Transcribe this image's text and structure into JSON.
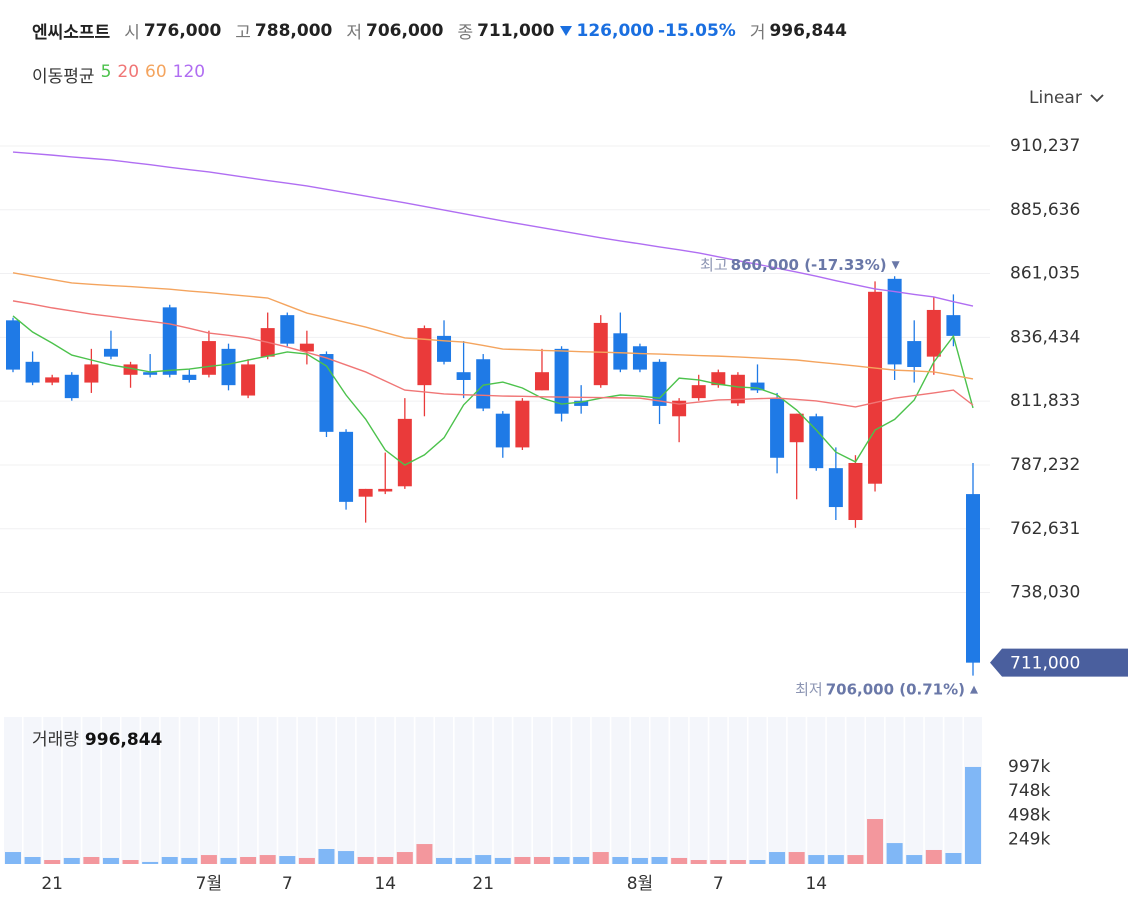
{
  "header": {
    "name": "엔씨소프트",
    "items": [
      {
        "label": "시",
        "value": "776,000"
      },
      {
        "label": "고",
        "value": "788,000"
      },
      {
        "label": "저",
        "value": "706,000"
      },
      {
        "label": "종",
        "value": "711,000"
      }
    ],
    "change": "126,000",
    "change_pct": "-15.05%",
    "volume_label": "거",
    "volume": "996,844"
  },
  "scale_selector": "Linear",
  "chart_data": [
    {
      "type": "candlestick",
      "legend_title": "이동평균",
      "categories": [
        null,
        null,
        "21",
        null,
        null,
        null,
        null,
        null,
        null,
        null,
        "7월",
        null,
        null,
        null,
        "7",
        null,
        null,
        null,
        null,
        "14",
        null,
        null,
        null,
        null,
        "21",
        null,
        null,
        null,
        null,
        null,
        null,
        null,
        "8월",
        null,
        null,
        null,
        "7",
        null,
        null,
        null,
        null,
        "14",
        null,
        null,
        null,
        null,
        null,
        null,
        null,
        null
      ],
      "open": [
        843000,
        827000,
        819000,
        822000,
        819000,
        832000,
        822000,
        823000,
        848000,
        822000,
        822000,
        832000,
        814000,
        829000,
        845000,
        831000,
        830000,
        800000,
        775000,
        777000,
        779000,
        818000,
        837000,
        823000,
        828000,
        807000,
        794000,
        816000,
        832000,
        812000,
        818000,
        838000,
        833000,
        827000,
        806000,
        813000,
        818000,
        811000,
        819000,
        813000,
        796000,
        806000,
        786000,
        766000,
        780000,
        859000,
        835000,
        829000,
        845000,
        776000
      ],
      "high": [
        844000,
        831000,
        822000,
        823000,
        832000,
        839000,
        827000,
        830000,
        849000,
        824000,
        839000,
        834000,
        828000,
        846000,
        846000,
        839000,
        831000,
        801000,
        778000,
        792000,
        813000,
        841000,
        843000,
        835000,
        830000,
        808000,
        813000,
        832000,
        833000,
        818000,
        845000,
        846000,
        834000,
        828000,
        813000,
        822000,
        824000,
        823000,
        826000,
        815000,
        807000,
        807000,
        794000,
        791000,
        858000,
        860000,
        843000,
        852000,
        853000,
        788000
      ],
      "low": [
        823000,
        818000,
        818000,
        812000,
        815000,
        828000,
        817000,
        821000,
        821000,
        819000,
        821000,
        816000,
        813000,
        828000,
        833000,
        826000,
        798000,
        770000,
        765000,
        776000,
        778000,
        806000,
        826000,
        813000,
        808000,
        790000,
        793000,
        816000,
        804000,
        807000,
        817000,
        823000,
        823000,
        803000,
        796000,
        812000,
        817000,
        810000,
        815000,
        784000,
        774000,
        785000,
        766000,
        763000,
        777000,
        820000,
        819000,
        822000,
        833000,
        706000
      ],
      "close": [
        824000,
        819000,
        821000,
        813000,
        826000,
        829000,
        826000,
        822000,
        822000,
        820000,
        835000,
        818000,
        826000,
        840000,
        834000,
        834000,
        800000,
        773000,
        778000,
        778000,
        805000,
        840000,
        827000,
        820000,
        809000,
        794000,
        812000,
        823000,
        807000,
        810000,
        842000,
        824000,
        824000,
        810000,
        812000,
        818000,
        823000,
        822000,
        816000,
        790000,
        807000,
        786000,
        771000,
        788000,
        854000,
        826000,
        825000,
        847000,
        837000,
        711000
      ],
      "up_color": "#ea3a3a",
      "down_color": "#1f7ae6",
      "series": [
        {
          "name": "5",
          "color": "#4cc24c",
          "values": [
            844700,
            838500,
            834200,
            829600,
            827700,
            825800,
            824500,
            823100,
            823700,
            824200,
            825200,
            826100,
            827700,
            829200,
            830800,
            830000,
            825400,
            814200,
            804900,
            793000,
            787200,
            791100,
            797700,
            810400,
            818000,
            819200,
            816900,
            813000,
            810700,
            811500,
            813000,
            814200,
            813800,
            813000,
            820700,
            820000,
            818400,
            817300,
            816900,
            814200,
            808400,
            800700,
            792200,
            788400,
            800700,
            804800,
            812300,
            826900,
            836900,
            809200
          ]
        },
        {
          "name": "20",
          "color": "#f07676",
          "values": [
            850500,
            849200,
            847800,
            846600,
            845400,
            844500,
            843500,
            842600,
            841600,
            839900,
            838100,
            837200,
            836200,
            834500,
            832700,
            830600,
            828500,
            825800,
            823100,
            819600,
            816100,
            815400,
            814600,
            814300,
            814100,
            813800,
            813700,
            813500,
            813400,
            813300,
            813200,
            813100,
            813000,
            811900,
            810700,
            811500,
            812300,
            812500,
            812800,
            813000,
            812500,
            811900,
            810800,
            809600,
            811300,
            813000,
            814000,
            815000,
            816100,
            810300
          ]
        },
        {
          "name": "60",
          "color": "#f4a45e",
          "values": [
            861300,
            860000,
            858700,
            857400,
            856900,
            856400,
            856000,
            855500,
            855000,
            854300,
            853700,
            853000,
            852300,
            851600,
            848700,
            845800,
            844000,
            842200,
            840400,
            838300,
            836200,
            835700,
            835100,
            834600,
            833300,
            831900,
            831700,
            831400,
            831200,
            830900,
            830700,
            830500,
            830200,
            830000,
            829700,
            829400,
            829200,
            828900,
            828500,
            828100,
            827700,
            826900,
            826200,
            825400,
            824600,
            823800,
            823500,
            823100,
            821800,
            820400
          ]
        },
        {
          "name": "120",
          "color": "#b06ef2",
          "values": [
            907900,
            907300,
            906700,
            906000,
            905400,
            904800,
            903900,
            903000,
            902000,
            901100,
            900200,
            899100,
            898000,
            896900,
            895900,
            894800,
            893500,
            892200,
            890900,
            889600,
            888300,
            886900,
            885500,
            884100,
            882700,
            881300,
            880000,
            878700,
            877400,
            876100,
            874800,
            873600,
            872500,
            871300,
            870200,
            869000,
            867500,
            866000,
            864600,
            863100,
            861600,
            860000,
            858300,
            856700,
            855100,
            854100,
            853000,
            852000,
            850200,
            848500
          ]
        }
      ],
      "ylim": [
        696600,
        924100
      ],
      "yticks": [
        {
          "value": 910237,
          "label": "910,237"
        },
        {
          "value": 885636,
          "label": "885,636"
        },
        {
          "value": 861035,
          "label": "861,035"
        },
        {
          "value": 836434,
          "label": "836,434"
        },
        {
          "value": 811833,
          "label": "811,833"
        },
        {
          "value": 787232,
          "label": "787,232"
        },
        {
          "value": 762631,
          "label": "762,631"
        },
        {
          "value": 738030,
          "label": "738,030"
        }
      ],
      "grid": true,
      "high_annotation": {
        "label": "최고",
        "text": "860,000 (-17.33%)"
      },
      "low_annotation": {
        "label": "최저",
        "text": "706,000 (0.71%)"
      },
      "last_price_label": "711,000"
    },
    {
      "type": "bar",
      "title": "거래량",
      "title_value": "996,844",
      "values": [
        123000,
        72000,
        41000,
        62000,
        72000,
        62000,
        41000,
        21000,
        72000,
        62000,
        92000,
        62000,
        72000,
        92000,
        82000,
        62000,
        154000,
        133000,
        72000,
        72000,
        123000,
        205000,
        62000,
        62000,
        92000,
        62000,
        72000,
        72000,
        72000,
        72000,
        123000,
        72000,
        62000,
        72000,
        62000,
        41000,
        41000,
        41000,
        41000,
        123000,
        123000,
        92000,
        92000,
        92000,
        462000,
        215000,
        92000,
        144000,
        113000,
        996844
      ],
      "up_color": "#f3979d",
      "down_color": "#80b7f6",
      "ylim": [
        0,
        1510000
      ],
      "yticks": [
        {
          "value": 996844,
          "label": "997k"
        },
        {
          "value": 747633,
          "label": "748k"
        },
        {
          "value": 498422,
          "label": "498k"
        },
        {
          "value": 249211,
          "label": "249k"
        }
      ]
    }
  ]
}
